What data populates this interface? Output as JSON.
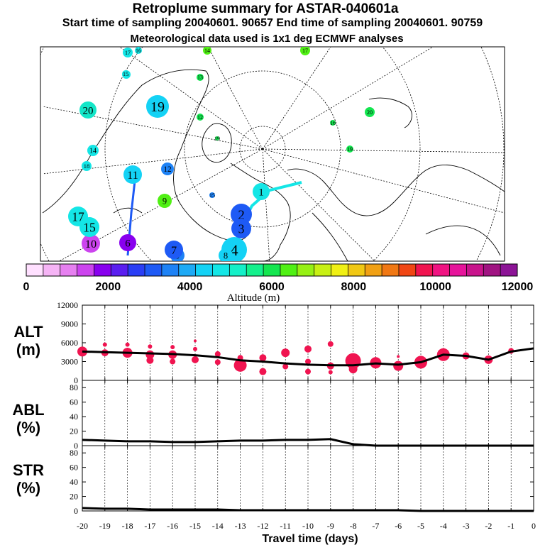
{
  "header": {
    "title": "Retroplume summary for ASTAR-040601a",
    "sampling": "Start time of sampling 20040601. 90657     End time of sampling 20040601. 90759",
    "met": "Meteorological data used is 1x1 deg ECMWF analyses"
  },
  "colorbar": {
    "colors": [
      "#ffe0ff",
      "#f5b4f5",
      "#e680f0",
      "#cc44ee",
      "#8800ee",
      "#5a1ef0",
      "#2a3ef5",
      "#1e5af5",
      "#1e82f5",
      "#1eaaf5",
      "#14d2f5",
      "#14e6e6",
      "#14f0c8",
      "#14f08c",
      "#14e650",
      "#50f014",
      "#96f014",
      "#c8f014",
      "#f0f014",
      "#f0c814",
      "#f0a014",
      "#f07814",
      "#f04614",
      "#f01450",
      "#f01482",
      "#e6149b",
      "#c8148c",
      "#a01482",
      "#8c1496"
    ],
    "ticks": [
      "0",
      "2000",
      "4000",
      "6000",
      "8000",
      "10000",
      "12000"
    ],
    "label": "Altitude (m)"
  },
  "map": {
    "clusters": [
      {
        "label": "1",
        "color": "#14e6e6",
        "r": 12
      },
      {
        "label": "2",
        "color": "#1e5af5",
        "r": 15
      },
      {
        "label": "3",
        "color": "#1e5af5",
        "r": 14
      },
      {
        "label": "4",
        "color": "#14d2f5",
        "r": 18
      },
      {
        "label": "5",
        "color": "#1e82f5",
        "r": 10
      },
      {
        "label": "6",
        "color": "#8800ee",
        "r": 12
      },
      {
        "label": "7",
        "color": "#1e5af5",
        "r": 13
      },
      {
        "label": "8",
        "color": "#14d2f5",
        "r": 10
      },
      {
        "label": "9",
        "color": "#50f014",
        "r": 10
      },
      {
        "label": "10",
        "color": "#cc44ee",
        "r": 13
      },
      {
        "label": "11",
        "color": "#14d2f5",
        "r": 13
      },
      {
        "label": "12",
        "color": "#1e82f5",
        "r": 9
      },
      {
        "label": "13",
        "color": "#14e650",
        "r": 5
      },
      {
        "label": "14",
        "color": "#14e6e6",
        "r": 8
      },
      {
        "label": "15",
        "color": "#14e6e6",
        "r": 14
      },
      {
        "label": "16",
        "color": "#14e6e6",
        "r": 6
      },
      {
        "label": "17",
        "color": "#14e6e6",
        "r": 14
      },
      {
        "label": "18",
        "color": "#14e6e6",
        "r": 7
      },
      {
        "label": "19",
        "color": "#14d2f5",
        "r": 16
      },
      {
        "label": "20",
        "color": "#14e6c8",
        "r": 12
      }
    ]
  },
  "chart_data": [
    {
      "type": "line",
      "title": "ALT (m)",
      "ylabel": "ALT (m)",
      "ylim": [
        0,
        12000
      ],
      "yticks": [
        "12000",
        "9000",
        "6000",
        "3000",
        "0"
      ],
      "x": [
        0,
        -1,
        -2,
        -3,
        -4,
        -5,
        -6,
        -7,
        -8,
        -9,
        -10,
        -11,
        -12,
        -13,
        -14,
        -15,
        -16,
        -17,
        -18,
        -19,
        -20
      ],
      "series": [
        {
          "name": "mean altitude",
          "values": [
            5100,
            4600,
            3300,
            3900,
            4100,
            2900,
            2500,
            2700,
            2400,
            2400,
            2500,
            2700,
            3000,
            3200,
            3700,
            4000,
            4200,
            4300,
            4400,
            4500,
            4600
          ]
        }
      ],
      "clusters": [
        {
          "x": -1,
          "y": 4700,
          "r": 4
        },
        {
          "x": -2,
          "y": 3300,
          "r": 6
        },
        {
          "x": -3,
          "y": 3900,
          "r": 5
        },
        {
          "x": -4,
          "y": 4100,
          "r": 9
        },
        {
          "x": -5,
          "y": 2900,
          "r": 9
        },
        {
          "x": -6,
          "y": 2300,
          "r": 7
        },
        {
          "x": -6,
          "y": 3800,
          "r": 2
        },
        {
          "x": -7,
          "y": 2800,
          "r": 8
        },
        {
          "x": -8,
          "y": 3100,
          "r": 11
        },
        {
          "x": -8,
          "y": 1800,
          "r": 6
        },
        {
          "x": -9,
          "y": 5800,
          "r": 4
        },
        {
          "x": -9,
          "y": 2300,
          "r": 5
        },
        {
          "x": -9,
          "y": 1300,
          "r": 3
        },
        {
          "x": -10,
          "y": 5000,
          "r": 5
        },
        {
          "x": -10,
          "y": 3000,
          "r": 4
        },
        {
          "x": -10,
          "y": 1400,
          "r": 4
        },
        {
          "x": -11,
          "y": 4400,
          "r": 6
        },
        {
          "x": -11,
          "y": 2200,
          "r": 4
        },
        {
          "x": -12,
          "y": 3600,
          "r": 5
        },
        {
          "x": -12,
          "y": 1400,
          "r": 5
        },
        {
          "x": -13,
          "y": 2400,
          "r": 9
        },
        {
          "x": -13,
          "y": 3600,
          "r": 4
        },
        {
          "x": -14,
          "y": 2900,
          "r": 4
        },
        {
          "x": -14,
          "y": 4200,
          "r": 4
        },
        {
          "x": -15,
          "y": 3300,
          "r": 5
        },
        {
          "x": -15,
          "y": 5000,
          "r": 3
        },
        {
          "x": -15,
          "y": 6300,
          "r": 2
        },
        {
          "x": -16,
          "y": 4100,
          "r": 6
        },
        {
          "x": -16,
          "y": 3000,
          "r": 4
        },
        {
          "x": -16,
          "y": 5300,
          "r": 3
        },
        {
          "x": -17,
          "y": 4100,
          "r": 6
        },
        {
          "x": -17,
          "y": 3200,
          "r": 5
        },
        {
          "x": -17,
          "y": 5400,
          "r": 3
        },
        {
          "x": -18,
          "y": 4400,
          "r": 7
        },
        {
          "x": -18,
          "y": 5700,
          "r": 3
        },
        {
          "x": -19,
          "y": 4400,
          "r": 5
        },
        {
          "x": -19,
          "y": 5700,
          "r": 3
        },
        {
          "x": -20,
          "y": 4600,
          "r": 7
        }
      ]
    },
    {
      "type": "line",
      "title": "ABL (%)",
      "ylabel": "ABL (%)",
      "ylim": [
        0,
        90
      ],
      "yticks": [
        "80",
        "60",
        "40",
        "20",
        "0"
      ],
      "x": [
        0,
        -1,
        -2,
        -3,
        -4,
        -5,
        -6,
        -7,
        -8,
        -9,
        -10,
        -11,
        -12,
        -13,
        -14,
        -15,
        -16,
        -17,
        -18,
        -19,
        -20
      ],
      "series": [
        {
          "name": "ABL fraction",
          "values": [
            0,
            0,
            0,
            0,
            0,
            0,
            0,
            0,
            2,
            9,
            8,
            8,
            7,
            7,
            6,
            5,
            5,
            6,
            6,
            7,
            8
          ]
        }
      ]
    },
    {
      "type": "line",
      "title": "STR (%)",
      "ylabel": "STR (%)",
      "ylim": [
        0,
        90
      ],
      "yticks": [
        "80",
        "60",
        "40",
        "20",
        "0"
      ],
      "x": [
        0,
        -1,
        -2,
        -3,
        -4,
        -5,
        -6,
        -7,
        -8,
        -9,
        -10,
        -11,
        -12,
        -13,
        -14,
        -15,
        -16,
        -17,
        -18,
        -19,
        -20
      ],
      "series": [
        {
          "name": "stratospheric fraction",
          "values": [
            0,
            0,
            0,
            0,
            0,
            0,
            1,
            1,
            1,
            1,
            1,
            1,
            1,
            1,
            2,
            2,
            2,
            2,
            3,
            3,
            4
          ]
        }
      ],
      "xticks": [
        "-20",
        "-19",
        "-18",
        "-17",
        "-16",
        "-15",
        "-14",
        "-13",
        "-12",
        "-11",
        "-10",
        "-9",
        "-8",
        "-7",
        "-6",
        "-5",
        "-4",
        "-3",
        "-2",
        "-1",
        "0"
      ],
      "xlabel": "Travel time (days)"
    }
  ],
  "panels": {
    "alt_label": [
      "ALT",
      "(m)"
    ],
    "abl_label": [
      "ABL",
      "(%)"
    ],
    "str_label": [
      "STR",
      "(%)"
    ]
  }
}
